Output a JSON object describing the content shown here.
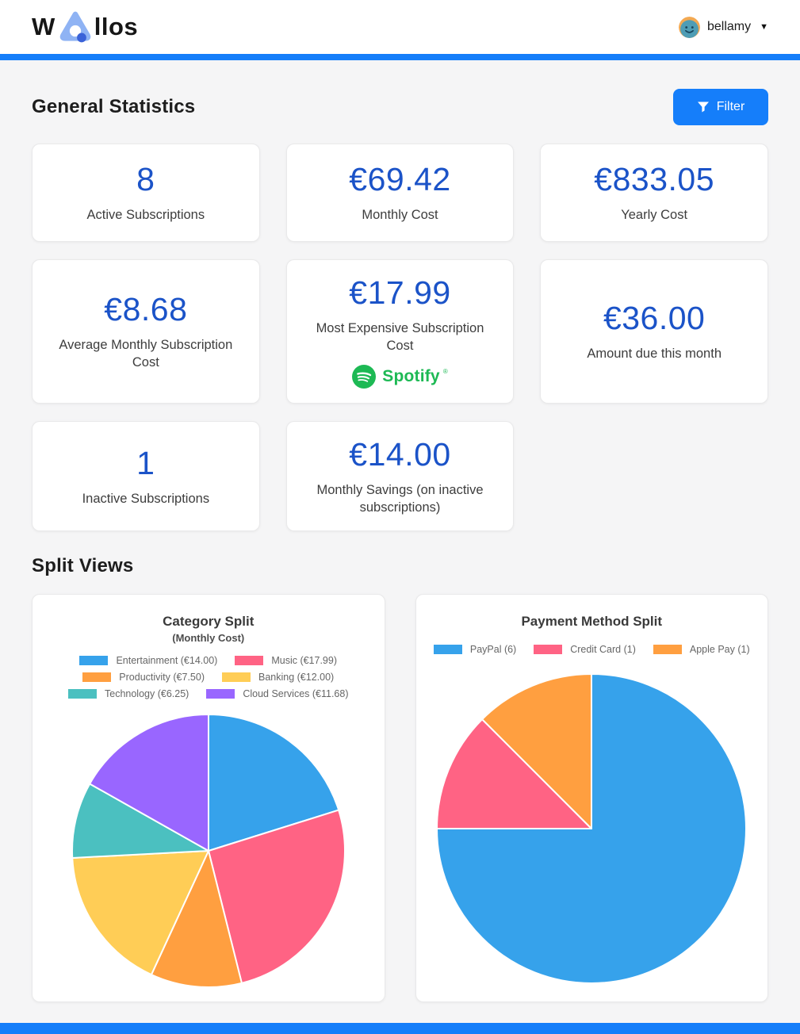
{
  "colors": {
    "accent": "#157EFA",
    "stat_number": "#1B53C8",
    "spotify_green": "#1DB954",
    "logo_triangle": "#8FB3F4",
    "logo_dot": "#3A62D8"
  },
  "header": {
    "logo_prefix": "W",
    "logo_suffix": "llos",
    "username": "bellamy",
    "caret": "▼"
  },
  "sections": {
    "stats_title": "General Statistics",
    "filter_label": "Filter",
    "split_title": "Split Views"
  },
  "stats": [
    {
      "value": "8",
      "label": "Active Subscriptions"
    },
    {
      "value": "€69.42",
      "label": "Monthly Cost"
    },
    {
      "value": "€833.05",
      "label": "Yearly Cost"
    },
    {
      "value": "€8.68",
      "label": "Average Monthly Subscription Cost"
    },
    {
      "value": "€17.99",
      "label": "Most Expensive Subscription Cost",
      "brand": "Spotify",
      "brand_mark": "®"
    },
    {
      "value": "€36.00",
      "label": "Amount due this month"
    },
    {
      "value": "1",
      "label": "Inactive Subscriptions"
    },
    {
      "value": "€14.00",
      "label": "Monthly Savings (on inactive subscriptions)"
    }
  ],
  "chart_data": [
    {
      "type": "pie",
      "title": "Category Split",
      "subtitle": "(Monthly Cost)",
      "categories": [
        "Entertainment",
        "Music",
        "Productivity",
        "Banking",
        "Technology",
        "Cloud Services"
      ],
      "values": [
        14.0,
        17.99,
        7.5,
        12.0,
        6.25,
        11.68
      ],
      "total": 69.42,
      "legend": [
        {
          "label": "Entertainment (€14.00)"
        },
        {
          "label": "Music (€17.99)"
        },
        {
          "label": "Productivity (€7.50)"
        },
        {
          "label": "Banking (€12.00)"
        },
        {
          "label": "Technology (€6.25)"
        },
        {
          "label": "Cloud Services (€11.68)"
        }
      ],
      "colors": [
        "#36A2EB",
        "#FF6384",
        "#FF9F40",
        "#FFCD56",
        "#4BC0C0",
        "#9966FF"
      ],
      "legend_position": "top",
      "start_angle_deg": 0,
      "direction": "clockwise"
    },
    {
      "type": "pie",
      "title": "Payment Method Split",
      "subtitle": "",
      "categories": [
        "PayPal",
        "Credit Card",
        "Apple Pay"
      ],
      "values": [
        6,
        1,
        1
      ],
      "total": 8,
      "legend": [
        {
          "label": "PayPal (6)"
        },
        {
          "label": "Credit Card (1)"
        },
        {
          "label": "Apple Pay (1)"
        }
      ],
      "colors": [
        "#36A2EB",
        "#FF6384",
        "#FF9F40"
      ],
      "legend_position": "top",
      "start_angle_deg": 0,
      "direction": "clockwise"
    }
  ]
}
